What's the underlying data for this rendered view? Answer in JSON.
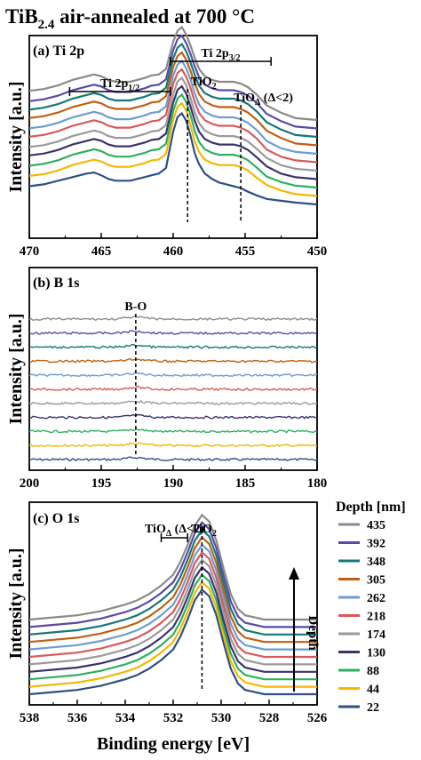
{
  "figure": {
    "title_main": "TiB",
    "title_sub": "2.4",
    "title_rest": " air-annealed at 700 °C"
  },
  "chart_data": [
    {
      "type": "line",
      "panel_label": "(a) Ti 2p",
      "xlabel": "",
      "ylabel": "Intensity [a.u.]",
      "xlim": [
        470,
        450
      ],
      "x_reversed": true,
      "xticks": [
        470,
        465,
        460,
        455,
        450
      ],
      "x": [
        470,
        469,
        468,
        467,
        466,
        465.5,
        465,
        464.5,
        464,
        463,
        462,
        461.5,
        461,
        460.5,
        460,
        459.7,
        459.4,
        459.1,
        458.8,
        458.5,
        458.2,
        457.8,
        457.3,
        456.8,
        456.3,
        455.8,
        455.3,
        454.8,
        454.2,
        453.5,
        452.5,
        451.5,
        450
      ],
      "series": [
        {
          "name": "22",
          "values": [
            10,
            11,
            13,
            15,
            17,
            17.5,
            16,
            14,
            13,
            13,
            15,
            16,
            17,
            20,
            40,
            48,
            50,
            46,
            38,
            28,
            22,
            17,
            14,
            12,
            11,
            10,
            9,
            7,
            5,
            3,
            2,
            1,
            0
          ]
        },
        {
          "name": "44",
          "values": [
            11,
            12,
            14,
            17,
            19,
            20,
            19,
            17,
            16,
            16,
            18,
            19.5,
            20,
            23,
            42,
            49,
            51,
            47,
            39,
            30,
            24,
            20,
            18,
            17,
            17,
            17,
            16,
            14,
            10,
            6,
            3,
            1,
            0
          ]
        },
        {
          "name": "88",
          "values": [
            12,
            13,
            15,
            18,
            20,
            21,
            20,
            18,
            17,
            17,
            19,
            20.5,
            21,
            24,
            42,
            49,
            51,
            47,
            40,
            31,
            25,
            21,
            19,
            18,
            18,
            18,
            17,
            15,
            11,
            6,
            3,
            1,
            0
          ]
        },
        {
          "name": "130",
          "values": [
            13,
            14,
            16,
            19,
            21,
            22,
            21,
            19,
            18,
            18,
            20,
            21.5,
            22,
            25,
            42,
            49,
            51,
            47,
            40,
            32,
            26,
            22,
            20,
            19,
            19,
            19,
            18,
            16,
            12,
            7,
            3,
            1,
            0
          ]
        },
        {
          "name": "174",
          "values": [
            13,
            14,
            16,
            19,
            21,
            22,
            21,
            19,
            18,
            18,
            20,
            21.5,
            22,
            25,
            42,
            49,
            51,
            47,
            40,
            32,
            26,
            22,
            20,
            19,
            19,
            19,
            18,
            16,
            12,
            7,
            3,
            1,
            0
          ]
        },
        {
          "name": "218",
          "values": [
            14,
            15,
            17,
            20,
            22,
            23,
            22,
            20,
            19,
            19,
            21,
            22.5,
            23,
            26,
            43,
            49,
            51,
            47,
            41,
            33,
            27,
            23,
            21,
            20,
            20,
            20,
            19,
            17,
            13,
            7,
            3,
            1,
            0
          ]
        },
        {
          "name": "262",
          "values": [
            14,
            15,
            17,
            20,
            22,
            23,
            22,
            20,
            19,
            19,
            21,
            22.5,
            23,
            26,
            43,
            49,
            51,
            47,
            41,
            33,
            27,
            23,
            21,
            20,
            20,
            20,
            19,
            17,
            13,
            7,
            3,
            1,
            0
          ]
        },
        {
          "name": "305",
          "values": [
            15,
            16,
            18,
            21,
            23,
            24,
            23,
            21,
            20,
            20,
            22,
            23.5,
            24,
            27,
            43,
            49,
            51,
            47,
            41,
            34,
            28,
            24,
            22,
            21,
            21,
            21,
            20,
            18,
            14,
            8,
            4,
            1,
            0
          ]
        },
        {
          "name": "348",
          "values": [
            15,
            16,
            18,
            21,
            23,
            24,
            23,
            21,
            20,
            20,
            22,
            23.5,
            24,
            27,
            43,
            49,
            51,
            47,
            41,
            34,
            28,
            24,
            22,
            21,
            21,
            21,
            20,
            18,
            14,
            8,
            4,
            1,
            0
          ]
        },
        {
          "name": "392",
          "values": [
            15,
            16,
            18,
            21,
            23,
            24,
            23,
            21,
            20,
            20,
            22,
            23.5,
            24,
            27,
            43,
            49,
            51,
            47,
            41,
            34,
            28,
            24,
            22,
            21,
            21,
            21,
            20,
            18,
            14,
            8,
            4,
            1,
            0
          ]
        },
        {
          "name": "435",
          "values": [
            16,
            17,
            19,
            22,
            24,
            25,
            24,
            22,
            21,
            21,
            23,
            24.5,
            25,
            28,
            43,
            49,
            51,
            47,
            41,
            34,
            28,
            24,
            22,
            21,
            21,
            21,
            20,
            18,
            14,
            8,
            4,
            1,
            0
          ]
        }
      ],
      "annotations": [
        {
          "text": "Ti 2p",
          "sub": "1/2",
          "x_start": 467.2,
          "x_end": 460.2
        },
        {
          "text": "Ti 2p",
          "sub": "3/2",
          "x_start": 460.2,
          "x_end": 453.2
        },
        {
          "text": "TiO",
          "sub": "2",
          "x": 459.0
        },
        {
          "text": "TiO",
          "sub": "Δ",
          "tail": " (Δ<2)",
          "x": 455.3
        }
      ],
      "vlines": [
        459.0,
        455.3
      ]
    },
    {
      "type": "line",
      "panel_label": "(b) B 1s",
      "xlabel": "",
      "ylabel": "Intensity [a.u.]",
      "xlim": [
        200,
        180
      ],
      "x_reversed": true,
      "xticks": [
        200,
        195,
        190,
        185,
        180
      ],
      "series_names": [
        "22",
        "44",
        "88",
        "130",
        "174",
        "218",
        "262",
        "305",
        "348",
        "392",
        "435"
      ],
      "shape": "flat noisy baseline with a weak peak near 192.6 eV",
      "annotations": [
        {
          "text": "B-O",
          "x": 192.6
        }
      ],
      "vlines": [
        192.6
      ]
    },
    {
      "type": "line",
      "panel_label": "(c) O 1s",
      "xlabel": "Binding energy [eV]",
      "ylabel": "Intensity [a.u.]",
      "xlim": [
        538,
        526
      ],
      "x_reversed": true,
      "xticks": [
        538,
        536,
        534,
        532,
        530,
        528,
        526
      ],
      "x": [
        538,
        537,
        536,
        535,
        534,
        533.5,
        533,
        532.5,
        532,
        531.7,
        531.4,
        531.1,
        530.8,
        530.5,
        530.2,
        529.9,
        529.6,
        529.3,
        529,
        528.6,
        528.2
      ],
      "series": [
        {
          "name": "22",
          "values": [
            0,
            1,
            2,
            4,
            7,
            9,
            12,
            16,
            21,
            27,
            35,
            44,
            49,
            46,
            37,
            24,
            12,
            5,
            2,
            1,
            0
          ]
        },
        {
          "name": "44",
          "values": [
            0,
            1,
            2,
            4,
            7,
            9,
            12,
            16,
            21,
            27,
            35,
            44,
            49,
            46,
            37,
            24,
            12,
            5,
            2,
            1,
            0
          ]
        },
        {
          "name": "88",
          "values": [
            0,
            1,
            2,
            4,
            7,
            9,
            12,
            16,
            21,
            27,
            35,
            44,
            49,
            46,
            37,
            24,
            12,
            5,
            2,
            1,
            0
          ]
        },
        {
          "name": "130",
          "values": [
            0,
            1,
            2,
            4,
            7,
            9,
            12,
            16,
            21,
            27,
            35,
            44,
            49,
            46,
            37,
            24,
            12,
            5,
            2,
            1,
            0
          ]
        },
        {
          "name": "174",
          "values": [
            0,
            1,
            2,
            4,
            7,
            9,
            12,
            16,
            21,
            27,
            35,
            44,
            49,
            46,
            37,
            24,
            12,
            5,
            2,
            1,
            0
          ]
        },
        {
          "name": "218",
          "values": [
            0,
            1,
            2,
            4,
            7,
            9,
            12,
            16,
            21,
            27,
            35,
            44,
            49,
            46,
            37,
            24,
            12,
            5,
            2,
            1,
            0
          ]
        },
        {
          "name": "262",
          "values": [
            0,
            1,
            2,
            4,
            7,
            9,
            12,
            16,
            21,
            27,
            35,
            44,
            49,
            46,
            37,
            24,
            12,
            5,
            2,
            1,
            0
          ]
        },
        {
          "name": "305",
          "values": [
            0,
            1,
            2,
            4,
            7,
            9,
            12,
            16,
            21,
            27,
            35,
            44,
            49,
            46,
            37,
            24,
            12,
            5,
            2,
            1,
            0
          ]
        },
        {
          "name": "348",
          "values": [
            0,
            1,
            2,
            4,
            7,
            9,
            12,
            16,
            21,
            27,
            35,
            44,
            49,
            46,
            37,
            24,
            12,
            5,
            2,
            1,
            0
          ]
        },
        {
          "name": "392",
          "values": [
            0,
            1,
            2,
            4,
            7,
            9,
            12,
            16,
            21,
            27,
            35,
            44,
            49,
            46,
            37,
            24,
            12,
            5,
            2,
            1,
            0
          ]
        },
        {
          "name": "435",
          "values": [
            0,
            1,
            2,
            4,
            7,
            9,
            12,
            16,
            21,
            27,
            35,
            44,
            49,
            46,
            37,
            24,
            12,
            5,
            2,
            1,
            0
          ]
        }
      ],
      "annotations": [
        {
          "text": "TiO",
          "sub": "Δ",
          "tail": " (Δ<2)",
          "x_start": 532.5,
          "x_end": 531.4
        },
        {
          "text": "TiO",
          "sub": "2",
          "x": 530.8
        }
      ],
      "vlines": [
        530.8
      ],
      "depth_arrow_label": "Depth"
    }
  ],
  "legend": {
    "title": "Depth [nm]",
    "placement": "right of panel (c)",
    "entries": [
      {
        "label": "435",
        "color": "#8a8a8a"
      },
      {
        "label": "392",
        "color": "#5a4aa8"
      },
      {
        "label": "348",
        "color": "#147878"
      },
      {
        "label": "305",
        "color": "#c06010"
      },
      {
        "label": "262",
        "color": "#6e9cd0"
      },
      {
        "label": "218",
        "color": "#d85a5a"
      },
      {
        "label": "174",
        "color": "#9a9a9a"
      },
      {
        "label": "130",
        "color": "#3a3270"
      },
      {
        "label": "88",
        "color": "#2eb060"
      },
      {
        "label": "44",
        "color": "#f2b800"
      },
      {
        "label": "22",
        "color": "#2e4e86"
      }
    ]
  }
}
